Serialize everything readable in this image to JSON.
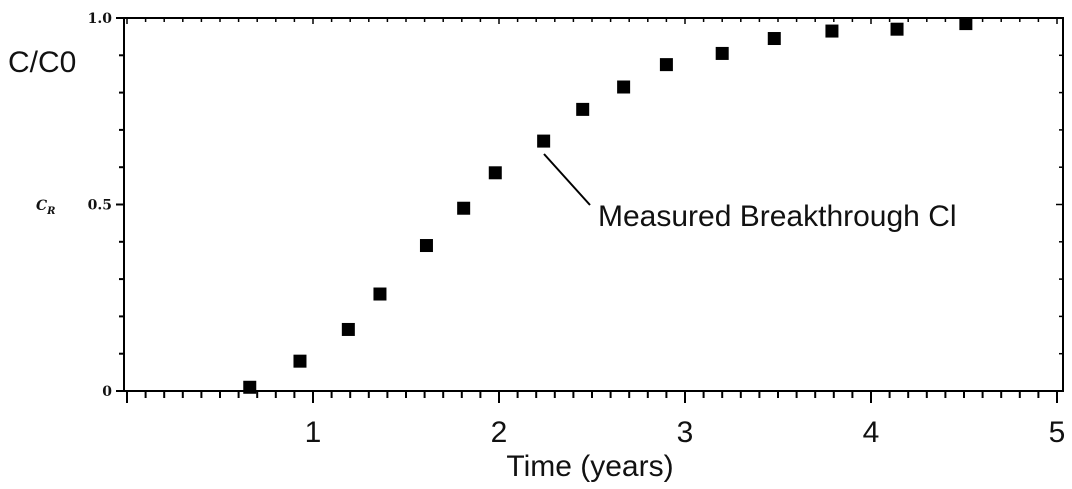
{
  "chart_data": {
    "type": "scatter",
    "ylabel_main": "C/C0",
    "ylabel_small": "C",
    "ylabel_small_sub": "R",
    "xlabel": "Time (years)",
    "xlim": [
      0,
      5
    ],
    "ylim": [
      0,
      1.0
    ],
    "x_tick_labels": [
      "1",
      "2",
      "3",
      "4",
      "5"
    ],
    "y_tick_labels": [
      "0",
      "0.5",
      "1.0"
    ],
    "annotation": "Measured Breakthrough Cl",
    "series": [
      {
        "marker": "square",
        "color": "#000000",
        "x": [
          0.66,
          0.93,
          1.19,
          1.36,
          1.61,
          1.81,
          1.98,
          2.24,
          2.45,
          2.67,
          2.9,
          3.2,
          3.48,
          3.79,
          4.14,
          4.51
        ],
        "y": [
          0.01,
          0.08,
          0.165,
          0.26,
          0.39,
          0.49,
          0.585,
          0.67,
          0.755,
          0.815,
          0.875,
          0.905,
          0.945,
          0.965,
          0.97,
          0.985
        ]
      }
    ]
  }
}
